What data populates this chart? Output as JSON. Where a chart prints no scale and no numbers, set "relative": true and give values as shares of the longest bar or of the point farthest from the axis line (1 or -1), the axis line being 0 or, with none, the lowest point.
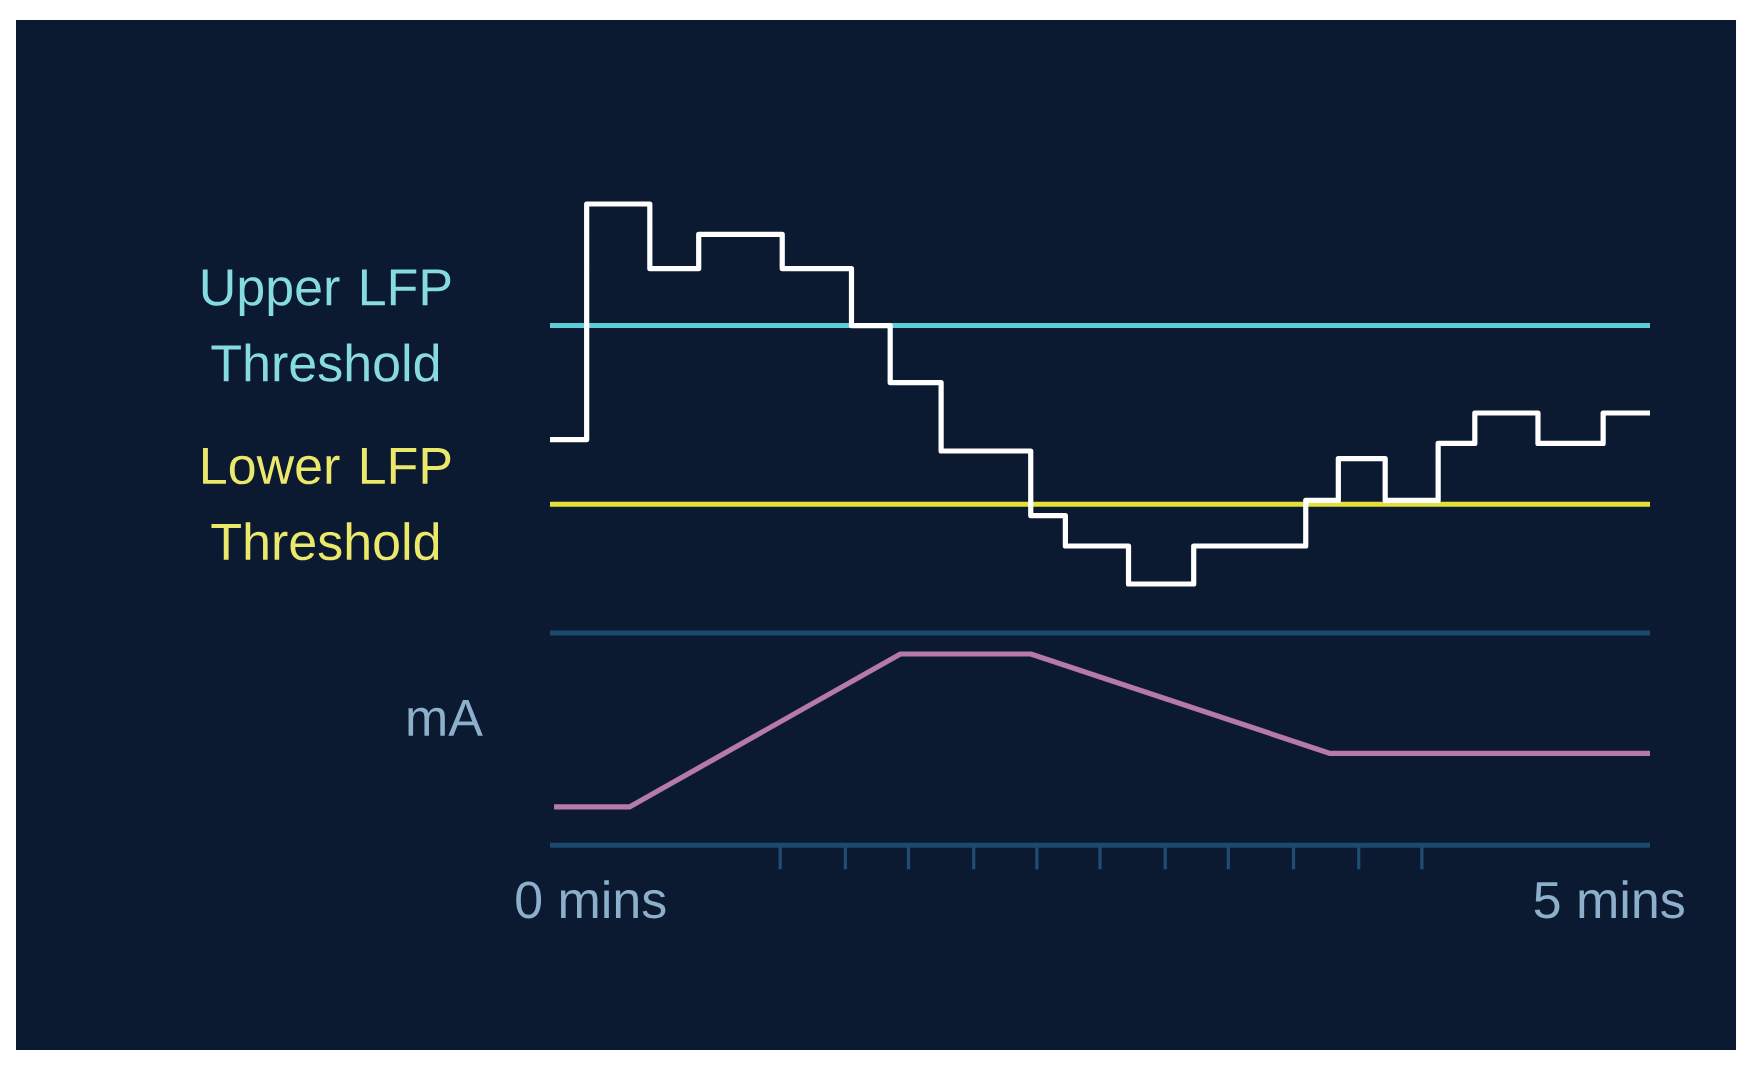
{
  "chart_data": [
    {
      "type": "step",
      "relative": true,
      "x": [
        -0.2,
        -0.02,
        0.29,
        0.53,
        0.94,
        1.28,
        1.47,
        1.72,
        2.16,
        2.33,
        2.64,
        2.96,
        3.51,
        3.67,
        3.9,
        4.16,
        4.34,
        4.65,
        4.97,
        5.2
      ],
      "series": [
        {
          "color": "#ffffff",
          "values": [
            0.38,
            1,
            0.83,
            0.92,
            0.83,
            0.68,
            0.53,
            0.35,
            0.18,
            0.1,
            0,
            0.1,
            0.22,
            0.33,
            0.22,
            0.37,
            0.45,
            0.37,
            0.45,
            0.45
          ]
        }
      ],
      "xlim": [
        -0.2,
        5.2
      ],
      "tick_labels": false,
      "ref_lines": [
        {
          "axis": "y",
          "value": 0.68,
          "label": "Upper LFP Threshold",
          "color": "#5ccfd6"
        },
        {
          "axis": "y",
          "value": 0.21,
          "label": "Lower LFP Threshold",
          "color": "#e6e03a"
        }
      ]
    },
    {
      "type": "line",
      "relative": true,
      "ylabel": "mA",
      "x": [
        -0.18,
        0.19,
        1.52,
        2.16,
        3.63,
        5.2
      ],
      "series": [
        {
          "color": "#b57aa8",
          "values": [
            0.2,
            0.2,
            1,
            1,
            0.48,
            0.48
          ]
        }
      ],
      "xlim": [
        -0.2,
        5.2
      ],
      "tick_labels": "x",
      "xticks": [
        {
          "value": 0,
          "label": "0 mins"
        },
        {
          "value": 0.93,
          "label": null
        },
        {
          "value": 1.25,
          "label": null
        },
        {
          "value": 1.56,
          "label": null
        },
        {
          "value": 1.88,
          "label": null
        },
        {
          "value": 2.19,
          "label": null
        },
        {
          "value": 2.5,
          "label": null
        },
        {
          "value": 2.82,
          "label": null
        },
        {
          "value": 3.13,
          "label": null
        },
        {
          "value": 3.45,
          "label": null
        },
        {
          "value": 3.77,
          "label": null
        },
        {
          "value": 4.08,
          "label": null
        },
        {
          "value": 5,
          "label": "5 mins"
        }
      ],
      "ref_lines": [
        {
          "axis": "y",
          "value": 1.11,
          "color": "#1b4a6c"
        }
      ]
    }
  ]
}
